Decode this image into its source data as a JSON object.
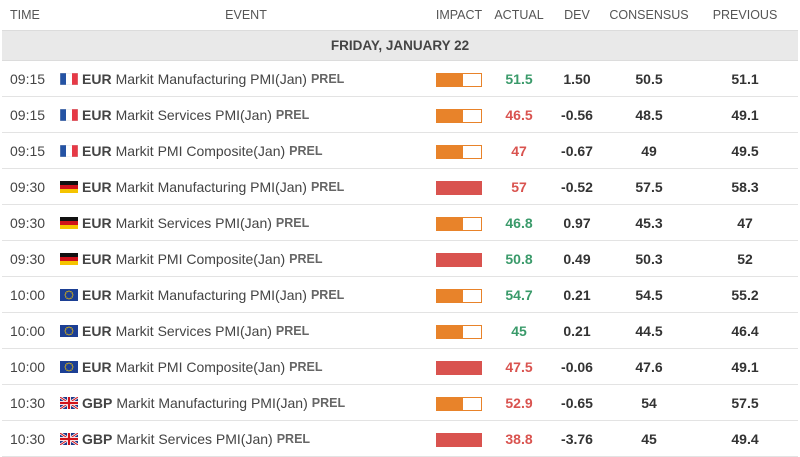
{
  "header": {
    "time": "TIME",
    "event": "EVENT",
    "impact": "IMPACT",
    "actual": "ACTUAL",
    "dev": "DEV",
    "consensus": "CONSENSUS",
    "previous": "PREVIOUS"
  },
  "date": "FRIDAY, JANUARY 22",
  "colors": {
    "medium": "#e8832a",
    "high": "#d9534f",
    "positive": "#3a9a6a",
    "negative": "#d9534f"
  },
  "rows": [
    {
      "time": "09:15",
      "flag": "fr",
      "currency": "EUR",
      "event": "Markit Manufacturing PMI(Jan)",
      "tag": "PREL",
      "impact": "medium",
      "impact_level": 0.6,
      "actual": "51.5",
      "actual_trend": "up",
      "dev": "1.50",
      "consensus": "50.5",
      "previous": "51.1"
    },
    {
      "time": "09:15",
      "flag": "fr",
      "currency": "EUR",
      "event": "Markit Services PMI(Jan)",
      "tag": "PREL",
      "impact": "medium",
      "impact_level": 0.6,
      "actual": "46.5",
      "actual_trend": "down",
      "dev": "-0.56",
      "consensus": "48.5",
      "previous": "49.1"
    },
    {
      "time": "09:15",
      "flag": "fr",
      "currency": "EUR",
      "event": "Markit PMI Composite(Jan)",
      "tag": "PREL",
      "impact": "medium",
      "impact_level": 0.6,
      "actual": "47",
      "actual_trend": "down",
      "dev": "-0.67",
      "consensus": "49",
      "previous": "49.5"
    },
    {
      "time": "09:30",
      "flag": "de",
      "currency": "EUR",
      "event": "Markit Manufacturing PMI(Jan)",
      "tag": "PREL",
      "impact": "high",
      "impact_level": 1,
      "actual": "57",
      "actual_trend": "down",
      "dev": "-0.52",
      "consensus": "57.5",
      "previous": "58.3"
    },
    {
      "time": "09:30",
      "flag": "de",
      "currency": "EUR",
      "event": "Markit Services PMI(Jan)",
      "tag": "PREL",
      "impact": "medium",
      "impact_level": 0.6,
      "actual": "46.8",
      "actual_trend": "up",
      "dev": "0.97",
      "consensus": "45.3",
      "previous": "47"
    },
    {
      "time": "09:30",
      "flag": "de",
      "currency": "EUR",
      "event": "Markit PMI Composite(Jan)",
      "tag": "PREL",
      "impact": "high",
      "impact_level": 1,
      "actual": "50.8",
      "actual_trend": "up",
      "dev": "0.49",
      "consensus": "50.3",
      "previous": "52"
    },
    {
      "time": "10:00",
      "flag": "eu",
      "currency": "EUR",
      "event": "Markit Manufacturing PMI(Jan)",
      "tag": "PREL",
      "impact": "medium",
      "impact_level": 0.6,
      "actual": "54.7",
      "actual_trend": "up",
      "dev": "0.21",
      "consensus": "54.5",
      "previous": "55.2"
    },
    {
      "time": "10:00",
      "flag": "eu",
      "currency": "EUR",
      "event": "Markit Services PMI(Jan)",
      "tag": "PREL",
      "impact": "medium",
      "impact_level": 0.6,
      "actual": "45",
      "actual_trend": "up",
      "dev": "0.21",
      "consensus": "44.5",
      "previous": "46.4"
    },
    {
      "time": "10:00",
      "flag": "eu",
      "currency": "EUR",
      "event": "Markit PMI Composite(Jan)",
      "tag": "PREL",
      "impact": "high",
      "impact_level": 1,
      "actual": "47.5",
      "actual_trend": "down",
      "dev": "-0.06",
      "consensus": "47.6",
      "previous": "49.1"
    },
    {
      "time": "10:30",
      "flag": "gb",
      "currency": "GBP",
      "event": "Markit Manufacturing PMI(Jan)",
      "tag": "PREL",
      "impact": "medium",
      "impact_level": 0.6,
      "actual": "52.9",
      "actual_trend": "down",
      "dev": "-0.65",
      "consensus": "54",
      "previous": "57.5"
    },
    {
      "time": "10:30",
      "flag": "gb",
      "currency": "GBP",
      "event": "Markit Services PMI(Jan)",
      "tag": "PREL",
      "impact": "high",
      "impact_level": 1,
      "actual": "38.8",
      "actual_trend": "down",
      "dev": "-3.76",
      "consensus": "45",
      "previous": "49.4"
    }
  ]
}
